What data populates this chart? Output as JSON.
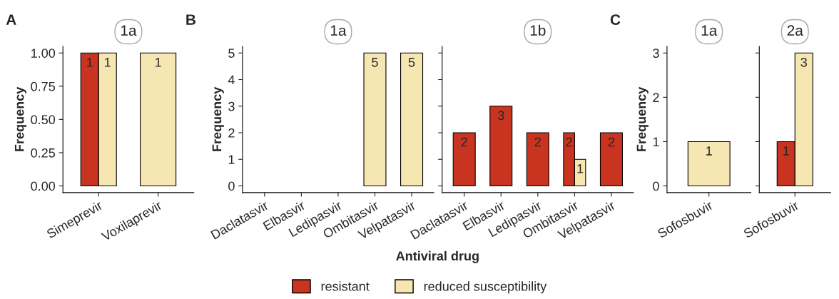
{
  "chart_data": [
    {
      "type": "bar",
      "title": "1a",
      "annotations": [
        "A"
      ],
      "ylabel": "Frequency",
      "categories": [
        "Simeprevir",
        "Voxilaprevir"
      ],
      "series": [
        {
          "name": "resistant",
          "color": "#c8341f",
          "values": [
            1,
            null
          ]
        },
        {
          "name": "reduced susceptibility",
          "color": "#f5e6b2",
          "values": [
            1,
            1
          ]
        }
      ],
      "ylim": [
        -0.05,
        1.05
      ],
      "yticks": [
        {
          "value": 0,
          "label": "0.00"
        },
        {
          "value": 0.25,
          "label": "0.25"
        },
        {
          "value": 0.5,
          "label": "0.50"
        },
        {
          "value": 0.75,
          "label": "0.75"
        },
        {
          "value": 1,
          "label": "1.00"
        }
      ],
      "data_labels": true,
      "legend": "bottom"
    },
    {
      "type": "bar",
      "title": "1a",
      "annotations": [
        "B"
      ],
      "ylabel": "Frequency",
      "xlabel": "Antiviral drug",
      "categories": [
        "Daclatasvir",
        "Elbasvir",
        "Ledipasvir",
        "Ombitasvir",
        "Velpatasvir"
      ],
      "series": [
        {
          "name": "resistant",
          "values": [
            null,
            null,
            null,
            null,
            null
          ]
        },
        {
          "name": "reduced susceptibility",
          "color": "#f5e6b2",
          "values": [
            null,
            null,
            null,
            5,
            5
          ]
        }
      ],
      "ylim": [
        -0.25,
        5.25
      ],
      "yticks": [
        0,
        1,
        2,
        3,
        4,
        5
      ],
      "data_labels": true
    },
    {
      "type": "bar",
      "title": "1b",
      "categories": [
        "Daclatasvir",
        "Elbasvir",
        "Ledipasvir",
        "Ombitasvir",
        "Velpatasvir"
      ],
      "series": [
        {
          "name": "resistant",
          "color": "#c8341f",
          "values": [
            2,
            3,
            2,
            2,
            2
          ]
        },
        {
          "name": "reduced susceptibility",
          "color": "#f5e6b2",
          "values": [
            null,
            null,
            null,
            1,
            null
          ]
        }
      ],
      "ylim": [
        -0.25,
        5.25
      ],
      "yticks": [
        0,
        1,
        2,
        3,
        4,
        5
      ],
      "tick_labels": "x",
      "data_labels": true
    },
    {
      "type": "bar",
      "title": "1a",
      "annotations": [
        "C"
      ],
      "ylabel": "Frequency",
      "categories": [
        "Sofosbuvir"
      ],
      "series": [
        {
          "name": "resistant",
          "values": [
            null
          ]
        },
        {
          "name": "reduced susceptibility",
          "color": "#f5e6b2",
          "values": [
            1
          ]
        }
      ],
      "ylim": [
        -0.15,
        3.15
      ],
      "yticks": [
        0,
        1,
        2,
        3
      ],
      "data_labels": true
    },
    {
      "type": "bar",
      "title": "2a",
      "categories": [
        "Sofosbuvir"
      ],
      "series": [
        {
          "name": "resistant",
          "color": "#c8341f",
          "values": [
            1
          ]
        },
        {
          "name": "reduced susceptibility",
          "color": "#f5e6b2",
          "values": [
            3
          ]
        }
      ],
      "ylim": [
        -0.15,
        3.15
      ],
      "yticks": [
        0,
        1,
        2,
        3
      ],
      "tick_labels": "x",
      "data_labels": true
    }
  ]
}
